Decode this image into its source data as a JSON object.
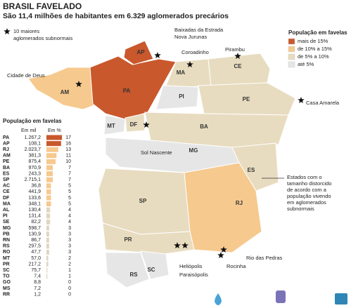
{
  "header": {
    "title": "BRASIL FAVELADO",
    "subtitle": "São 11,4 milhões de habitantes em 6.329 aglomerados precários"
  },
  "star_legend": [
    "10 maiores",
    "aglomerados subnormais"
  ],
  "legend": {
    "title": "População em favelas",
    "items": [
      {
        "label": "mais de 15%",
        "color": "#c9582c"
      },
      {
        "label": "de 10% a 15%",
        "color": "#f6c98e"
      },
      {
        "label": "de 5% a 10%",
        "color": "#e8dcc0"
      },
      {
        "label": "até 5%",
        "color": "#e6e6e6"
      }
    ]
  },
  "states": [
    "AP",
    "PA",
    "AM",
    "MA",
    "CE",
    "PI",
    "PE",
    "MT",
    "DF",
    "BA",
    "MG",
    "ES",
    "SP",
    "RJ",
    "PR",
    "SC",
    "RS"
  ],
  "places": [
    [
      "Cidade de Deus"
    ],
    [
      "Baixadas da Estrada",
      "Nova Jurunas"
    ],
    [
      "Coroadinho"
    ],
    [
      "Pirambu"
    ],
    [
      "Casa Amarela"
    ],
    [
      "Sol Nascente"
    ],
    [
      "Rio das Pedras"
    ],
    [
      "Rocinha"
    ],
    [
      "Heliópolis"
    ],
    [
      "Paraisópolis"
    ]
  ],
  "annotation": [
    "Estados com o",
    "tamanho distorcido",
    "de acordo com a",
    "população vivendo",
    "em aglomerados",
    "subnormais"
  ],
  "table": {
    "title": "População em favelas",
    "columns": [
      "Em mil",
      "Em %"
    ],
    "rows": [
      [
        "PA",
        "1.267,2",
        17,
        "#c9582c"
      ],
      [
        "AP",
        "108,1",
        16,
        "#c9582c"
      ],
      [
        "RJ",
        "2.023,7",
        13,
        "#f6c98e"
      ],
      [
        "AM",
        "381,3",
        11,
        "#f6c98e"
      ],
      [
        "PE",
        "875,4",
        10,
        "#f6c98e"
      ],
      [
        "BA",
        "970,9",
        7,
        "#f6c98e"
      ],
      [
        "ES",
        "243,3",
        7,
        "#f6c98e"
      ],
      [
        "SP",
        "2.715,1",
        7,
        "#f6c98e"
      ],
      [
        "AC",
        "36,8",
        5,
        "#f6c98e"
      ],
      [
        "CE",
        "441,9",
        5,
        "#f6c98e"
      ],
      [
        "DF",
        "133,6",
        5,
        "#f6c98e"
      ],
      [
        "MA",
        "348,1",
        5,
        "#f6c98e"
      ],
      [
        "AL",
        "130,4",
        4,
        "#e0d6c0"
      ],
      [
        "PI",
        "131,4",
        4,
        "#e0d6c0"
      ],
      [
        "SE",
        "82,2",
        4,
        "#e0d6c0"
      ],
      [
        "MG",
        "598,7",
        3,
        "#e0d6c0"
      ],
      [
        "PB",
        "130,9",
        3,
        "#e0d6c0"
      ],
      [
        "RN",
        "86,7",
        3,
        "#e0d6c0"
      ],
      [
        "RS",
        "297,5",
        3,
        "#e0d6c0"
      ],
      [
        "RO",
        "47,7",
        3,
        "#e0d6c0"
      ],
      [
        "MT",
        "57,0",
        2,
        "#e0d6c0"
      ],
      [
        "PR",
        "217,2",
        2,
        "#e0d6c0"
      ],
      [
        "SC",
        "75,7",
        1,
        "#e0d6c0"
      ],
      [
        "TO",
        "7,4",
        1,
        "#e0d6c0"
      ],
      [
        "GO",
        "8,8",
        0,
        "#e0d6c0"
      ],
      [
        "MS",
        "7,2",
        0,
        "#e0d6c0"
      ],
      [
        "RR",
        "1,2",
        0,
        "#e0d6c0"
      ]
    ]
  }
}
